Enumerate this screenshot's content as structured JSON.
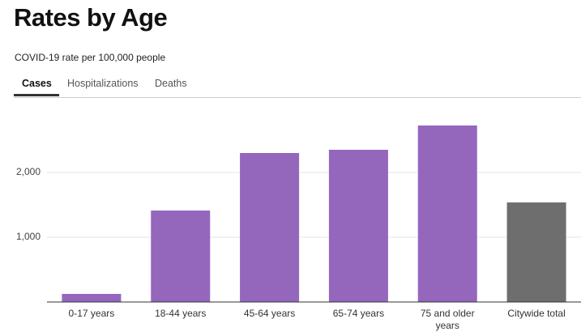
{
  "tabs": [
    "Cases",
    "Hospitalizations",
    "Deaths"
  ],
  "chart_data": {
    "type": "bar",
    "title": "Rates by Age",
    "subtitle": "COVID-19 rate per 100,000 people",
    "categories": [
      "0-17 years",
      "18-44 years",
      "45-64 years",
      "65-74 years",
      "75 and older years",
      "Citywide total"
    ],
    "values": [
      125,
      1412,
      2300,
      2350,
      2725,
      1537
    ],
    "colors": [
      "#9467bd",
      "#9467bd",
      "#9467bd",
      "#9467bd",
      "#9467bd",
      "#6e6e6e"
    ],
    "ylim": [
      0,
      3000
    ],
    "yticks": [
      {
        "value": 1000,
        "label": "1,000"
      },
      {
        "value": 2000,
        "label": "2,000"
      }
    ],
    "grid": true
  }
}
